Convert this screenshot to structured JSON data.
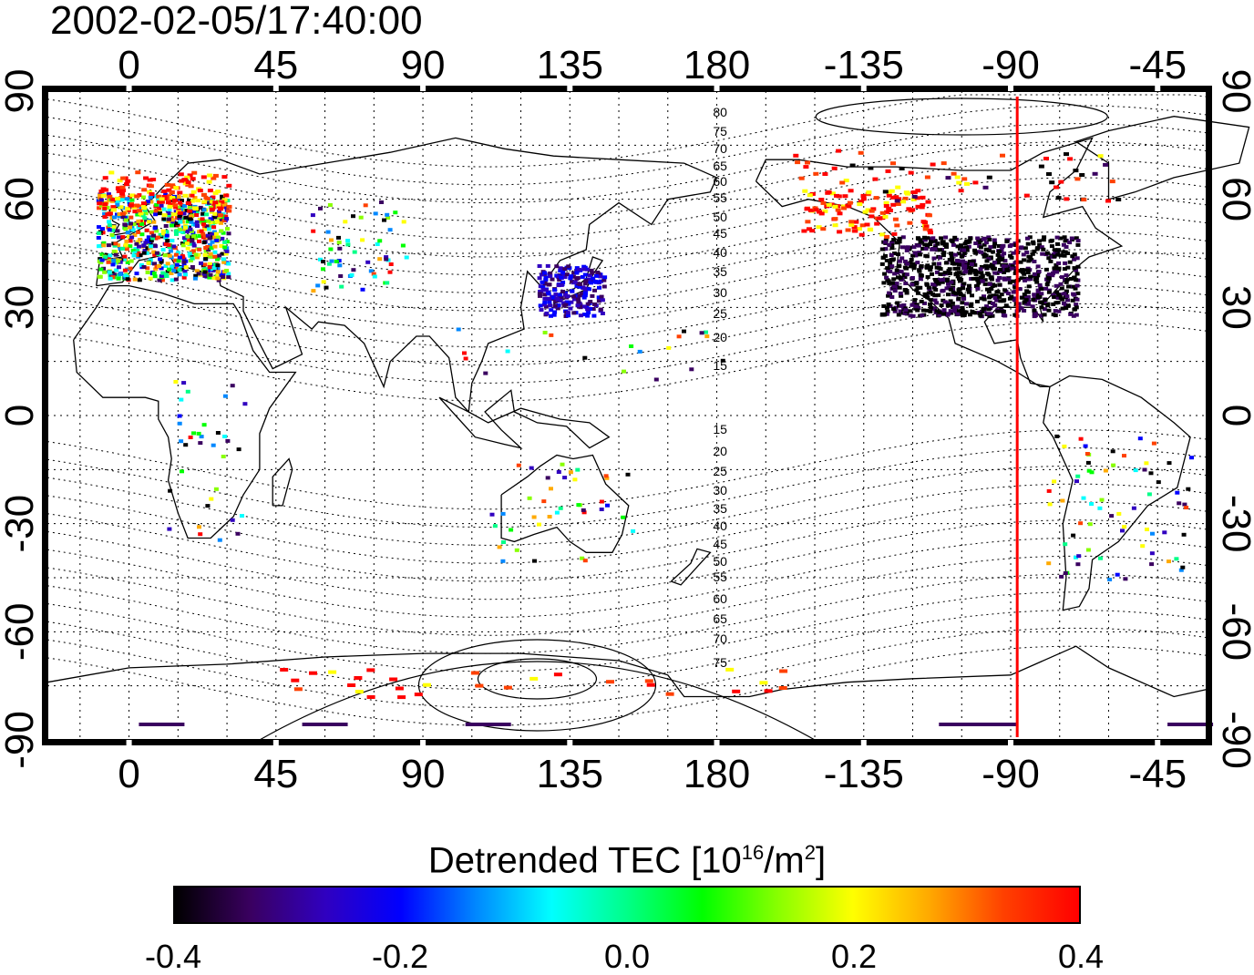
{
  "timestamp": "2002-02-05/17:40:00",
  "axes": {
    "lon_ticks": [
      "0",
      "45",
      "90",
      "135",
      "180",
      "-135",
      "-90",
      "-45"
    ],
    "lon_values": [
      0,
      45,
      90,
      135,
      180,
      225,
      270,
      315
    ],
    "lat_ticks": [
      "90",
      "60",
      "30",
      "0",
      "-30",
      "-60",
      "-90"
    ],
    "lat_values": [
      90,
      60,
      30,
      0,
      -30,
      -60,
      -90
    ],
    "lon_range": [
      -25,
      330
    ],
    "lat_range": [
      -90,
      90
    ],
    "grid": "dotted"
  },
  "magnetic_latitude_labels": {
    "north": [
      "80",
      "75",
      "70",
      "65",
      "60",
      "55",
      "50",
      "45",
      "40",
      "35",
      "30",
      "25",
      "20",
      "15"
    ],
    "south": [
      "15",
      "20",
      "25",
      "30",
      "35",
      "40",
      "45",
      "50",
      "55",
      "60",
      "65",
      "70",
      "75"
    ]
  },
  "marker_line": {
    "longitude": 272,
    "color": "#ff0000"
  },
  "colorbar": {
    "title_main": "Detrended TEC  [10",
    "title_exp1": "16",
    "title_mid": "/m",
    "title_exp2": "2",
    "title_end": "]",
    "ticks": [
      "-0.4",
      "-0.2",
      "0.0",
      "0.2",
      "0.4"
    ],
    "tick_values": [
      -0.4,
      -0.2,
      0.0,
      0.2,
      0.4
    ],
    "range": [
      -0.4,
      0.4
    ],
    "colors": [
      "#000000",
      "#3a0060",
      "#3000c0",
      "#0000ff",
      "#0088ff",
      "#00ffff",
      "#00ff88",
      "#00ff00",
      "#88ff00",
      "#ffff00",
      "#ffaa00",
      "#ff4000",
      "#ff0000"
    ]
  },
  "colors": {
    "coast": "#000000",
    "marker": "#ff0000"
  }
}
